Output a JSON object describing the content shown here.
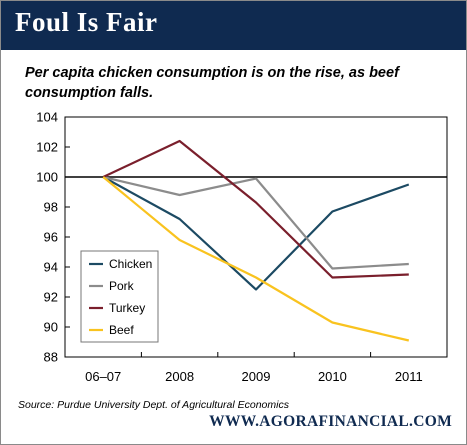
{
  "header": {
    "title": "Foul Is Fair"
  },
  "subtitle": "Per capita chicken consumption is on the rise, as beef consumption falls.",
  "source": "Source: Purdue University Dept. of Agricultural Economics",
  "footer": "WWW.AGORAFINANCIAL.COM",
  "colors": {
    "header_bg": "#0f2a50",
    "chicken": "#1c4a63",
    "pork": "#8c8c8c",
    "turkey": "#7a1f2c",
    "beef": "#f9c31f"
  },
  "chart_data": {
    "type": "line",
    "categories": [
      "06–07",
      "2008",
      "2009",
      "2010",
      "2011"
    ],
    "ylim": [
      88,
      104
    ],
    "yticks": [
      88,
      90,
      92,
      94,
      96,
      98,
      100,
      102,
      104
    ],
    "reference_line": 100,
    "grid": false,
    "legend_position": "lower-left",
    "series": [
      {
        "name": "Chicken",
        "color": "#1c4a63",
        "values": [
          100,
          97.2,
          92.5,
          97.7,
          99.5
        ]
      },
      {
        "name": "Pork",
        "color": "#8c8c8c",
        "values": [
          100,
          98.8,
          99.9,
          93.9,
          94.2
        ]
      },
      {
        "name": "Turkey",
        "color": "#7a1f2c",
        "values": [
          100,
          102.4,
          98.3,
          93.3,
          93.5
        ]
      },
      {
        "name": "Beef",
        "color": "#f9c31f",
        "values": [
          100,
          95.8,
          93.3,
          90.3,
          89.1
        ]
      }
    ]
  }
}
